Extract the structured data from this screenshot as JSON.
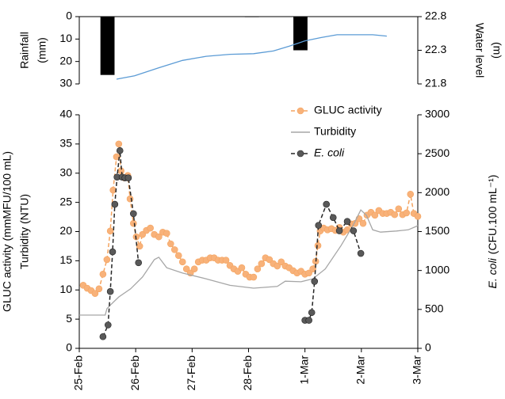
{
  "chart_data": [
    {
      "type": "combo",
      "xlim": [
        0,
        6
      ],
      "ylim": [
        0,
        30
      ],
      "y_inverted": true,
      "yticks": [
        0,
        10,
        20,
        30
      ],
      "y2lim": [
        21.8,
        22.8
      ],
      "y2ticks": [
        21.8,
        22.3,
        22.8
      ],
      "ylabel": [
        "Rainfall",
        "(mm)"
      ],
      "y2label": [
        "Water level",
        "(m)"
      ],
      "y2label_layout": "stacked",
      "series": [
        {
          "name": "Rainfall",
          "type": "bar",
          "color": "#000000",
          "x": [
            0.5,
            3.06,
            3.92
          ],
          "values": [
            26,
            0.2,
            15
          ]
        },
        {
          "name": "Water level",
          "type": "line",
          "axis": "y2",
          "color": "#5b9bd5",
          "x": [
            0.66,
            0.98,
            1.41,
            1.83,
            2.25,
            2.67,
            3.09,
            3.44,
            3.72,
            4.0,
            4.29,
            4.57,
            4.92,
            5.2,
            5.45
          ],
          "values": [
            21.87,
            21.92,
            22.04,
            22.15,
            22.21,
            22.24,
            22.25,
            22.29,
            22.36,
            22.44,
            22.49,
            22.53,
            22.53,
            22.53,
            22.51
          ]
        }
      ]
    },
    {
      "type": "combo",
      "xlim": [
        0,
        6
      ],
      "xticks": [
        {
          "value": 0,
          "label": "25-Feb"
        },
        {
          "value": 1,
          "label": "26-Feb"
        },
        {
          "value": 2,
          "label": "27-Feb"
        },
        {
          "value": 3,
          "label": "28-Feb"
        },
        {
          "value": 4,
          "label": "1-Mar"
        },
        {
          "value": 5,
          "label": "2-Mar"
        },
        {
          "value": 6,
          "label": "3-Mar"
        }
      ],
      "ylim": [
        0,
        40
      ],
      "yticks": [
        0,
        5,
        10,
        15,
        20,
        25,
        30,
        35,
        40
      ],
      "y2lim": [
        0,
        3000
      ],
      "y2ticks": [
        0,
        500,
        1000,
        1500,
        2000,
        2500,
        3000
      ],
      "ylabel": [
        "GLUC activity (mmMFU/100 mL)",
        "Turbidity (NTU)"
      ],
      "y2label": [
        "E. coli",
        "(CFU.100 mL⁻¹)"
      ],
      "y2label_layout": "inline",
      "legend": "upper-right",
      "series": [
        {
          "name": "GLUC activity",
          "type": "line",
          "dash": true,
          "marker": "circle",
          "color": "#f4a460",
          "marker_color": "#f8b27a",
          "x": [
            0.07,
            0.14,
            0.21,
            0.28,
            0.35,
            0.42,
            0.49,
            0.55,
            0.6,
            0.66,
            0.7,
            0.74,
            0.8,
            0.86,
            0.9,
            0.96,
            1.01,
            1.07,
            1.12,
            1.19,
            1.26,
            1.33,
            1.41,
            1.48,
            1.55,
            1.62,
            1.69,
            1.76,
            1.83,
            1.9,
            1.97,
            2.04,
            2.11,
            2.18,
            2.25,
            2.32,
            2.39,
            2.46,
            2.53,
            2.6,
            2.67,
            2.74,
            2.81,
            2.88,
            2.95,
            3.02,
            3.09,
            3.16,
            3.23,
            3.3,
            3.37,
            3.44,
            3.51,
            3.58,
            3.65,
            3.72,
            3.79,
            3.86,
            3.93,
            4.0,
            4.07,
            4.14,
            4.19,
            4.23,
            4.27,
            4.33,
            4.4,
            4.47,
            4.54,
            4.61,
            4.68,
            4.75,
            4.82,
            4.89,
            4.96,
            5.03,
            5.1,
            5.17,
            5.24,
            5.31,
            5.38,
            5.45,
            5.52,
            5.59,
            5.66,
            5.73,
            5.8,
            5.87,
            5.93,
            6.0
          ],
          "values": [
            10.8,
            10.3,
            9.9,
            9.4,
            10.2,
            12.7,
            15.2,
            20.1,
            27.1,
            32.8,
            35.0,
            30.4,
            29.2,
            29.6,
            25.6,
            21.4,
            19.1,
            17.5,
            19.5,
            20.2,
            20.6,
            19.5,
            19.1,
            19.9,
            19.7,
            17.9,
            16.9,
            15.9,
            14.8,
            13.6,
            12.9,
            13.6,
            14.8,
            15.1,
            15.1,
            15.5,
            15.5,
            15.1,
            15.1,
            15.1,
            14.2,
            13.6,
            13.2,
            13.8,
            12.7,
            12.2,
            12.2,
            13.6,
            14.5,
            15.5,
            15.2,
            14.5,
            14.1,
            14.8,
            14.1,
            13.8,
            13.3,
            12.9,
            13.2,
            12.7,
            12.9,
            13.6,
            14.9,
            17.6,
            20.1,
            20.6,
            20.3,
            20.5,
            20.2,
            20.7,
            19.9,
            20.3,
            21.3,
            21.4,
            22.2,
            21.4,
            22.8,
            23.3,
            22.8,
            23.6,
            23.1,
            23.1,
            23.3,
            22.9,
            23.9,
            22.9,
            23.2,
            26.4,
            23.1,
            22.6
          ]
        },
        {
          "name": "Turbidity",
          "type": "line",
          "color": "#a6a6a6",
          "x": [
            0,
            0.46,
            0.49,
            0.56,
            0.7,
            0.91,
            1.12,
            1.33,
            1.41,
            1.55,
            1.83,
            2.25,
            2.67,
            3.09,
            3.51,
            3.65,
            3.93,
            4.14,
            4.36,
            4.64,
            4.85,
            4.99,
            5.09,
            5.2,
            5.34,
            5.62,
            5.83,
            6.0
          ],
          "values": [
            5.7,
            5.7,
            6.8,
            7.5,
            8.8,
            10.2,
            12.2,
            15.2,
            15.6,
            13.8,
            12.9,
            11.9,
            10.8,
            10.3,
            10.6,
            11.5,
            11.4,
            11.9,
            13.6,
            17.6,
            21.0,
            23.7,
            22.8,
            20.3,
            19.9,
            20.1,
            20.3,
            21.0
          ]
        },
        {
          "name": "E. coli",
          "type": "line",
          "axis": "y2",
          "dash": true,
          "marker": "circle",
          "italic": true,
          "color": "#262626",
          "marker_color": "#595959",
          "x": [
            0.42,
            0.51,
            0.55,
            0.59,
            0.63,
            0.67,
            0.72,
            0.76,
            0.81,
            0.87,
            0.96,
            1.05,
            null,
            4.0,
            4.07,
            4.12,
            4.17,
            4.24,
            4.38,
            4.5,
            4.61,
            4.75,
            4.86,
            4.99
          ],
          "values": [
            150,
            300,
            730,
            1240,
            1850,
            2200,
            2540,
            2200,
            2190,
            2190,
            1730,
            1100,
            null,
            360,
            360,
            460,
            860,
            1580,
            1850,
            1680,
            1510,
            1630,
            1510,
            1220
          ]
        }
      ]
    }
  ]
}
